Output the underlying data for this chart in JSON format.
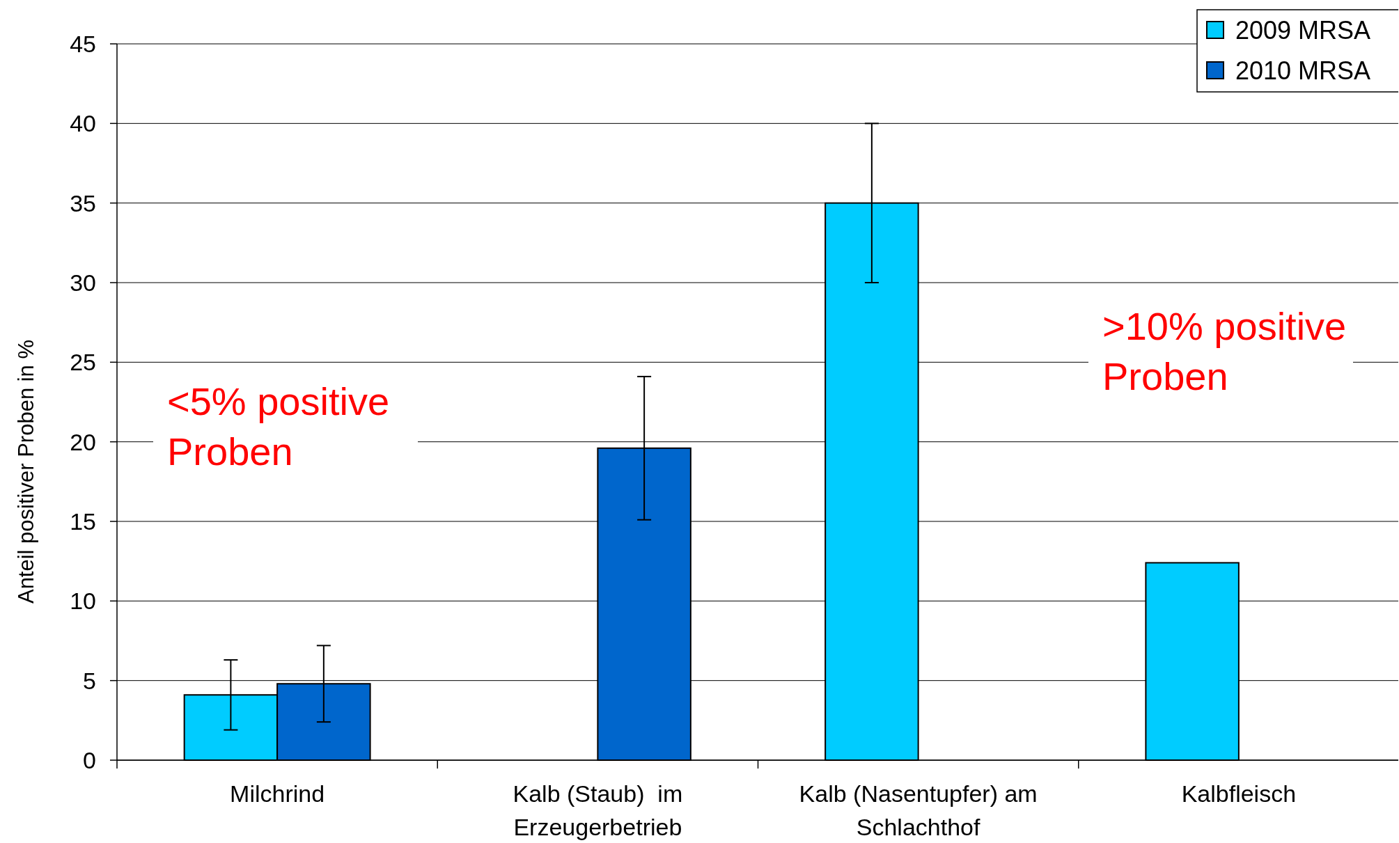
{
  "chart_data": {
    "type": "bar",
    "ylabel": "Anteil positiver Proben in %",
    "categories": [
      "Milchrind",
      "Kalb (Staub)  im\nErzeugerbetrieb",
      "Kalb (Nasentupfer) am\nSchlachthof",
      "Kalbfleisch"
    ],
    "series": [
      {
        "name": "2009 MRSA",
        "color": "#00ccff",
        "values": [
          4.1,
          null,
          35.0,
          12.4
        ],
        "errors": [
          2.2,
          null,
          5.0,
          null
        ]
      },
      {
        "name": "2010 MRSA",
        "color": "#0066cc",
        "values": [
          4.8,
          19.6,
          null,
          null
        ],
        "errors": [
          2.4,
          4.5,
          null,
          null
        ]
      }
    ],
    "ylim": [
      0,
      45
    ],
    "yticks": [
      0,
      5,
      10,
      15,
      20,
      25,
      30,
      35,
      40,
      45
    ],
    "grid": "y",
    "legend": "top right",
    "annotations": [
      "<5% positive\nProben",
      ">10% positive\nProben"
    ]
  }
}
